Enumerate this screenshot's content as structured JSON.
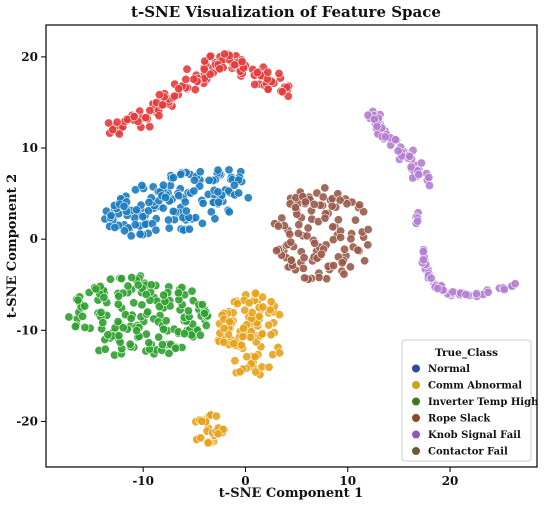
{
  "chart_data": {
    "type": "scatter",
    "title": "t-SNE Visualization of Feature Space",
    "xlabel": "t-SNE Component 1",
    "ylabel": "t-SNE Component 2",
    "xlim": [
      -19.5,
      28.5
    ],
    "ylim": [
      -25,
      23.5
    ],
    "xticks": [
      -10,
      0,
      10,
      20
    ],
    "yticks": [
      -20,
      -10,
      0,
      10,
      20
    ],
    "grid": false,
    "legend": {
      "title": "True_Class",
      "position": "lower-right",
      "entries": [
        {
          "label": "Normal",
          "color": "#2f4a9c"
        },
        {
          "label": "Comm Abnormal",
          "color": "#c9a414"
        },
        {
          "label": "Inverter Temp High",
          "color": "#3f7a1a"
        },
        {
          "label": "Rope Slack",
          "color": "#8a4a20"
        },
        {
          "label": "Knob Signal Fail",
          "color": "#8a5ab8"
        },
        {
          "label": "Contactor Fail",
          "color": "#6a5a3c"
        }
      ]
    },
    "clusters": [
      {
        "color": "#e83a3a",
        "shape": "arc",
        "path": [
          [
            -13.5,
            12
          ],
          [
            -11,
            13
          ],
          [
            -8,
            15
          ],
          [
            -5,
            17.5
          ],
          [
            -3,
            19.5
          ],
          [
            0,
            19
          ],
          [
            2,
            17.5
          ],
          [
            4,
            16
          ]
        ],
        "spread": 1.4,
        "n": 140
      },
      {
        "color": "#1a7bc0",
        "shape": "blob",
        "center": [
          -6.5,
          4
        ],
        "rx": 7.5,
        "ry": 3.2,
        "tilt": 0.25,
        "n": 150
      },
      {
        "color": "#2ea12e",
        "shape": "blob",
        "center": [
          -10.5,
          -8.5
        ],
        "rx": 7,
        "ry": 4.5,
        "tilt": 0,
        "n": 170
      },
      {
        "color": "#e8a21a",
        "shape": "blob",
        "center": [
          0.5,
          -10.5
        ],
        "rx": 3.2,
        "ry": 4.8,
        "tilt": 0,
        "n": 100
      },
      {
        "color": "#e8a21a",
        "shape": "blob",
        "center": [
          -3.7,
          -20.8
        ],
        "rx": 1.7,
        "ry": 1.6,
        "tilt": 0,
        "n": 30
      },
      {
        "color": "#9a5a4a",
        "shape": "blob",
        "center": [
          7.5,
          0.5
        ],
        "rx": 5,
        "ry": 5.2,
        "tilt": 0,
        "n": 120
      },
      {
        "color": "#b57ed0",
        "shape": "arc",
        "path": [
          [
            12.5,
            13.5
          ],
          [
            14,
            11
          ],
          [
            16,
            8.5
          ],
          [
            18,
            6
          ]
        ],
        "spread": 1.1,
        "n": 70
      },
      {
        "color": "#b57ed0",
        "shape": "arc",
        "path": [
          [
            16.8,
            3
          ],
          [
            16.8,
            1
          ]
        ],
        "spread": 0.2,
        "n": 8
      },
      {
        "color": "#b57ed0",
        "shape": "arc",
        "path": [
          [
            17.3,
            -1
          ],
          [
            17.5,
            -3
          ],
          [
            18.5,
            -5
          ],
          [
            20,
            -6
          ],
          [
            23,
            -6
          ],
          [
            26.5,
            -5
          ]
        ],
        "spread": 0.35,
        "n": 55
      }
    ]
  }
}
